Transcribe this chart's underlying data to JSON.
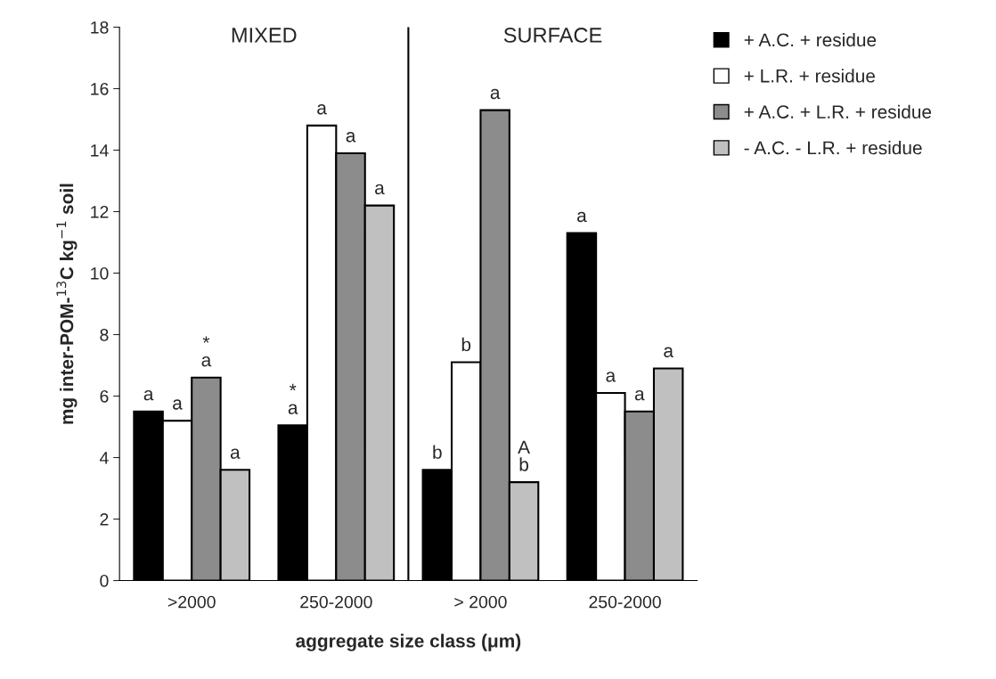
{
  "chart_data": {
    "type": "bar",
    "categories": [
      ">2000",
      "250-2000",
      "> 2000",
      "250-2000"
    ],
    "series": [
      {
        "name": "+ A.C. + residue",
        "color": "#000000",
        "values": [
          5.5,
          5.05,
          3.6,
          11.3
        ],
        "value_labels": [
          "a",
          "*\na",
          "b",
          "a"
        ]
      },
      {
        "name": "+ L.R. + residue",
        "color": "#ffffff",
        "values": [
          5.2,
          14.8,
          7.1,
          6.1
        ],
        "value_labels": [
          "a",
          "a",
          "b",
          "a"
        ]
      },
      {
        "name": "+ A.C. + L.R. + residue",
        "color": "#8c8c8c",
        "values": [
          6.6,
          13.9,
          15.3,
          5.5
        ],
        "value_labels": [
          "*\na",
          "a",
          "a",
          "a"
        ]
      },
      {
        "name": "- A.C. - L.R. + residue",
        "color": "#c0c0c0",
        "values": [
          3.6,
          12.2,
          3.2,
          6.9
        ],
        "value_labels": [
          "a",
          "a",
          "A\nb",
          "a"
        ]
      }
    ],
    "xlabel": "aggregate size class (μm)",
    "ylabel": "mg inter-POM-$^{13}$C kg$^{−1}$ soil",
    "ylim": [
      0,
      18
    ],
    "yticks": [
      0,
      2,
      4,
      6,
      8,
      10,
      12,
      14,
      16,
      18
    ],
    "annotations": [
      "MIXED",
      "SURFACE"
    ],
    "grid": false,
    "legend": "top right"
  }
}
